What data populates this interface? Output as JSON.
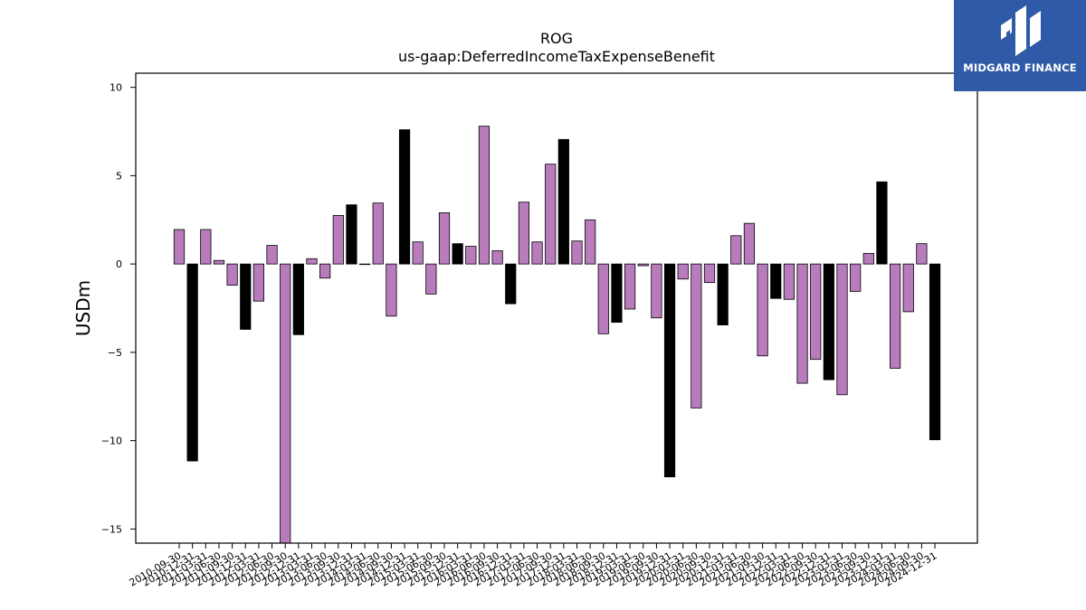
{
  "brand": {
    "name": "MIDGARD FINANCE",
    "background": "#2f5aa8"
  },
  "chart_data": {
    "type": "bar",
    "title": "ROG",
    "subtitle": "us-gaap:DeferredIncomeTaxExpenseBenefit",
    "xlabel": "",
    "ylabel": "USDm",
    "ylim": [
      -15.8,
      10.8
    ],
    "yticks": [
      10,
      5,
      0,
      -5,
      -10,
      -15
    ],
    "ytick_labels": [
      "10",
      "5",
      "0",
      "−5",
      "−10",
      "−15"
    ],
    "grid": false,
    "colors": {
      "quarter": "#b87cbd",
      "annual": "#000000"
    },
    "categories": [
      "2010-09-30",
      "2010-12-31",
      "2011-03-31",
      "2011-06-30",
      "2011-09-30",
      "2011-12-31",
      "2012-03-31",
      "2012-06-30",
      "2012-09-30",
      "2012-12-31",
      "2013-03-31",
      "2013-06-30",
      "2013-09-30",
      "2013-12-31",
      "2014-03-31",
      "2014-06-30",
      "2014-09-30",
      "2014-12-31",
      "2015-03-31",
      "2015-06-30",
      "2015-09-30",
      "2015-12-31",
      "2016-03-31",
      "2016-06-30",
      "2016-09-30",
      "2016-12-31",
      "2017-03-31",
      "2017-06-30",
      "2017-09-30",
      "2017-12-31",
      "2018-03-31",
      "2018-06-30",
      "2018-09-30",
      "2018-12-31",
      "2019-03-31",
      "2019-06-30",
      "2019-09-30",
      "2019-12-31",
      "2020-03-31",
      "2020-06-30",
      "2020-09-30",
      "2020-12-31",
      "2021-03-31",
      "2021-06-30",
      "2021-09-30",
      "2021-12-31",
      "2022-03-31",
      "2022-06-30",
      "2022-09-30",
      "2022-12-31",
      "2023-03-31",
      "2023-06-30",
      "2023-09-30",
      "2023-12-31",
      "2024-03-31",
      "2024-06-30",
      "2024-09-30",
      "2024-12-31"
    ],
    "values": [
      1.95,
      -11.15,
      1.95,
      0.2,
      -1.2,
      -3.7,
      -2.1,
      1.05,
      -16.0,
      -4.0,
      0.3,
      -0.8,
      2.75,
      3.35,
      0.0,
      3.45,
      -2.95,
      7.6,
      1.25,
      -1.7,
      2.9,
      1.15,
      1.0,
      7.8,
      0.75,
      -2.25,
      3.5,
      1.25,
      5.65,
      7.05,
      1.3,
      2.5,
      -3.95,
      -3.3,
      -2.55,
      -0.1,
      -3.05,
      -12.05,
      -0.85,
      -8.15,
      -1.05,
      -3.45,
      1.6,
      2.3,
      -5.2,
      -1.95,
      -2.0,
      -6.75,
      -5.4,
      -6.55,
      -7.4,
      -1.55,
      0.6,
      4.65,
      -5.9,
      -2.7,
      1.15,
      -9.95
    ],
    "annual": [
      false,
      true,
      false,
      false,
      false,
      true,
      false,
      false,
      false,
      true,
      false,
      false,
      false,
      true,
      false,
      false,
      false,
      true,
      false,
      false,
      false,
      true,
      false,
      false,
      false,
      true,
      false,
      false,
      false,
      true,
      false,
      false,
      false,
      true,
      false,
      false,
      false,
      true,
      false,
      false,
      false,
      true,
      false,
      false,
      false,
      true,
      false,
      false,
      false,
      true,
      false,
      false,
      false,
      true,
      false,
      false,
      false,
      true
    ]
  }
}
